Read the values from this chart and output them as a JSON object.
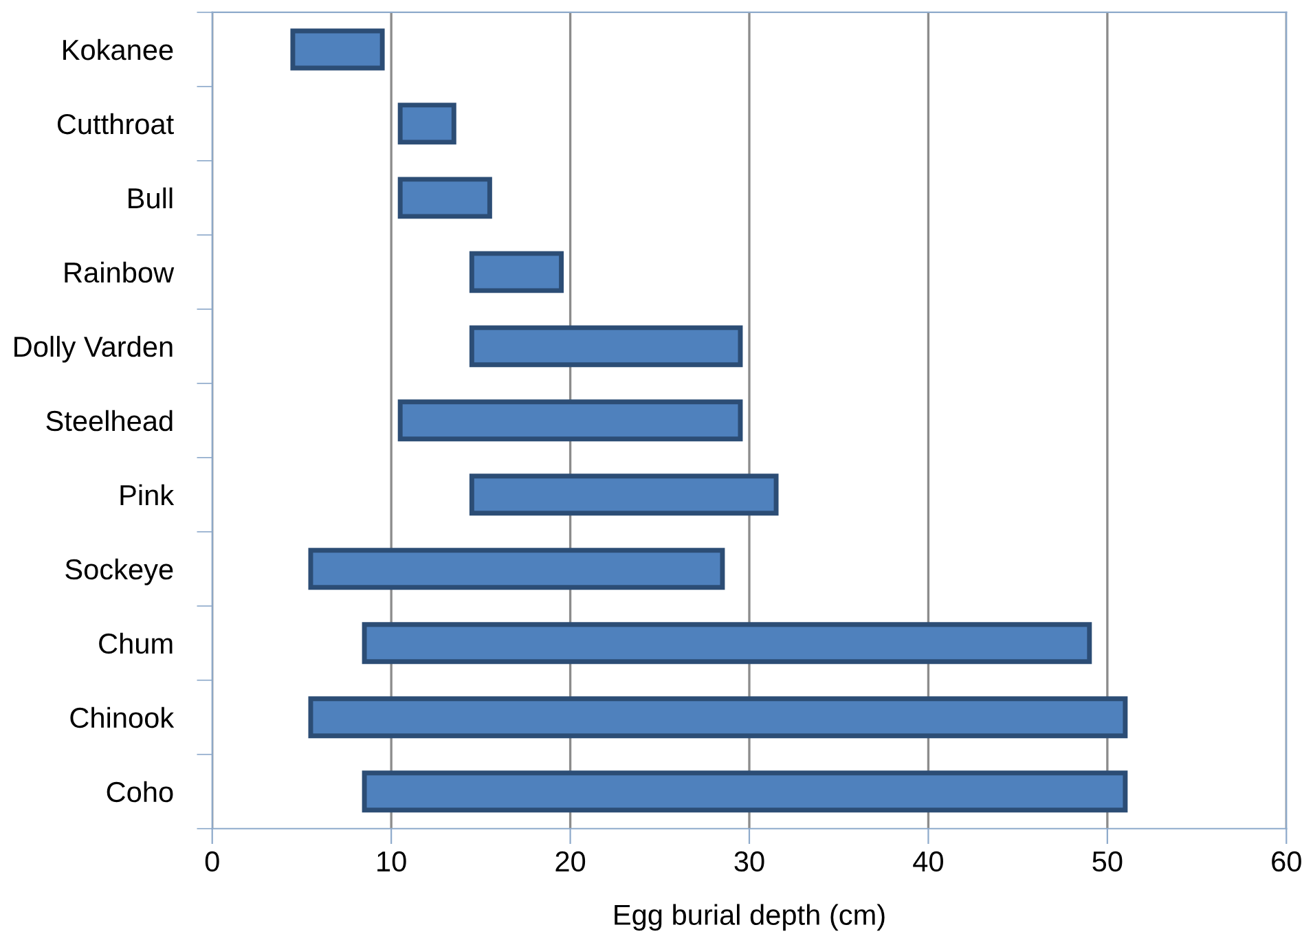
{
  "chart_data": {
    "type": "bar",
    "orientation": "horizontal",
    "xlabel": "Egg burial depth (cm)",
    "categories": [
      "Kokanee",
      "Cutthroat",
      "Bull",
      "Rainbow",
      "Dolly Varden",
      "Steelhead",
      "Pink",
      "Sockeye",
      "Chum",
      "Chinook",
      "Coho"
    ],
    "base": [
      4.5,
      10.5,
      10.5,
      14.5,
      14.5,
      10.5,
      14.5,
      5.5,
      8.5,
      5.5,
      8.5
    ],
    "values": [
      5,
      3,
      5,
      5,
      15,
      19,
      17,
      23,
      40.5,
      45.5,
      42.5
    ],
    "color": "#4f81bd",
    "xlim": [
      0,
      60
    ],
    "xticks": [
      0,
      10,
      20,
      30,
      40,
      50,
      60
    ],
    "grid": "x"
  }
}
